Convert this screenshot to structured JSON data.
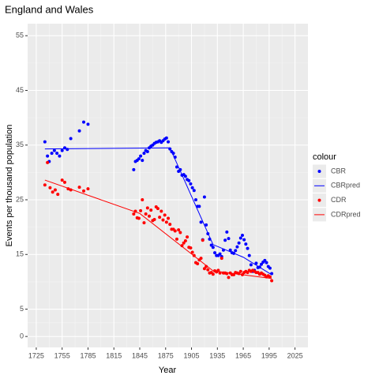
{
  "chart_data": {
    "type": "scatter",
    "title": "England and Wales",
    "x_label": "Year",
    "y_label": "Events per thousand population",
    "legend_title": "colour",
    "legend": "right",
    "grid": true,
    "xlim": [
      1715,
      2040
    ],
    "ylim": [
      -2,
      57.2
    ],
    "xticks": [
      1725,
      1755,
      1785,
      1815,
      1845,
      1875,
      1905,
      1935,
      1965,
      1995,
      2025
    ],
    "yticks": [
      0,
      5,
      15,
      25,
      35,
      45,
      55
    ],
    "xminor": [
      1740,
      1770,
      1800,
      1830,
      1860,
      1890,
      1920,
      1950,
      1980,
      2010
    ],
    "yminor": [
      2.5,
      10,
      20,
      30,
      40,
      50
    ],
    "series": [
      {
        "name": "CBR",
        "color": "#0000ff",
        "mode": "points",
        "x": [
          1735,
          1738,
          1740,
          1743,
          1746,
          1749,
          1752,
          1755,
          1758,
          1761,
          1765,
          1775,
          1780,
          1785,
          1838,
          1840,
          1842,
          1844,
          1846,
          1848,
          1850,
          1852,
          1854,
          1856,
          1858,
          1860,
          1862,
          1864,
          1866,
          1868,
          1870,
          1872,
          1874,
          1876,
          1878,
          1880,
          1882,
          1884,
          1886,
          1888,
          1890,
          1892,
          1894,
          1896,
          1898,
          1900,
          1902,
          1904,
          1906,
          1908,
          1910,
          1912,
          1914,
          1916,
          1918,
          1920,
          1922,
          1924,
          1926,
          1928,
          1930,
          1932,
          1934,
          1936,
          1938,
          1940,
          1942,
          1944,
          1946,
          1948,
          1950,
          1952,
          1954,
          1956,
          1958,
          1960,
          1962,
          1964,
          1966,
          1968,
          1970,
          1972,
          1974,
          1976,
          1978,
          1980,
          1982,
          1984,
          1986,
          1988,
          1990,
          1992,
          1994,
          1996,
          1998
        ],
        "values": [
          35.6,
          33,
          32,
          33.5,
          34,
          33.5,
          33,
          34,
          34.5,
          34.2,
          36.2,
          37.6,
          39.2,
          38.8,
          30.5,
          32,
          32.2,
          32.5,
          33,
          32.2,
          33.5,
          34,
          33.8,
          34.5,
          34.8,
          35,
          35.3,
          35.5,
          35.6,
          35.8,
          35.5,
          35.8,
          36.1,
          36.3,
          35.6,
          34.3,
          33.8,
          33.5,
          32.8,
          31,
          30.2,
          30.5,
          29.5,
          29.6,
          29.3,
          28.7,
          28.5,
          27.9,
          27.2,
          26.7,
          25,
          23.8,
          23.8,
          20.9,
          17.7,
          25.5,
          20.4,
          18.8,
          17.8,
          16.7,
          16.3,
          15.3,
          14.8,
          14.8,
          15.1,
          14.6,
          15.8,
          17.6,
          19.1,
          17.9,
          15.8,
          15.3,
          15.2,
          15.7,
          16.4,
          17.1,
          18,
          18.5,
          17.7,
          16.9,
          16.1,
          14.8,
          13.1,
          11.9,
          12.1,
          13.4,
          12.6,
          12.7,
          13.2,
          13.6,
          13.9,
          13.5,
          12.8,
          12.5,
          11.5
        ]
      },
      {
        "name": "CBRpred",
        "color": "#0000ff",
        "mode": "line",
        "x": [
          1735,
          1880,
          1930,
          1965,
          1998
        ],
        "values": [
          34.3,
          34.5,
          16.8,
          14.5,
          11.3
        ]
      },
      {
        "name": "CDR",
        "color": "#ff0000",
        "mode": "points",
        "x": [
          1735,
          1738,
          1741,
          1744,
          1747,
          1750,
          1755,
          1758,
          1762,
          1765,
          1775,
          1780,
          1785,
          1838,
          1840,
          1842,
          1844,
          1846,
          1848,
          1850,
          1852,
          1854,
          1856,
          1858,
          1860,
          1862,
          1864,
          1866,
          1868,
          1870,
          1872,
          1874,
          1876,
          1878,
          1880,
          1882,
          1884,
          1886,
          1888,
          1890,
          1892,
          1894,
          1896,
          1898,
          1900,
          1902,
          1904,
          1906,
          1908,
          1910,
          1912,
          1914,
          1916,
          1918,
          1920,
          1922,
          1924,
          1926,
          1928,
          1930,
          1932,
          1934,
          1936,
          1938,
          1940,
          1942,
          1944,
          1946,
          1948,
          1950,
          1952,
          1954,
          1956,
          1958,
          1960,
          1962,
          1964,
          1966,
          1968,
          1970,
          1972,
          1974,
          1976,
          1978,
          1980,
          1982,
          1984,
          1986,
          1988,
          1990,
          1992,
          1994,
          1996,
          1998
        ],
        "values": [
          27.7,
          31.8,
          27.2,
          26.4,
          26.8,
          26,
          28.6,
          28.2,
          27,
          26.8,
          27.3,
          26.6,
          27,
          22.4,
          22.9,
          21.7,
          21.6,
          23,
          25,
          20.8,
          22.4,
          23.5,
          22,
          23.1,
          21.2,
          21.4,
          23.7,
          23.4,
          21.8,
          22.9,
          21.3,
          22.2,
          20.9,
          21.6,
          20.5,
          19.6,
          19.6,
          19.3,
          17.8,
          19.5,
          19,
          16.6,
          17.1,
          17.5,
          18.2,
          16.3,
          16.2,
          15.4,
          14.8,
          13.5,
          13.3,
          14,
          14.3,
          17.6,
          12.4,
          12.8,
          12.2,
          11.6,
          11.7,
          11.4,
          12,
          11.8,
          12.1,
          11.6,
          14.3,
          11.6,
          11.6,
          11.5,
          10.8,
          11.6,
          11.3,
          11.3,
          11.7,
          11.6,
          11.5,
          11.9,
          11.3,
          11.7,
          11.9,
          11.7,
          12.1,
          11.9,
          12.1,
          11.9,
          11.7,
          11.7,
          11.4,
          11.6,
          11.4,
          11.2,
          10.9,
          11.1,
          10.9,
          10.2
        ]
      },
      {
        "name": "CDRpred",
        "color": "#ff0000",
        "mode": "line",
        "x": [
          1735,
          1845,
          1930,
          1998
        ],
        "values": [
          28.6,
          22.5,
          12,
          10.6
        ]
      }
    ]
  }
}
